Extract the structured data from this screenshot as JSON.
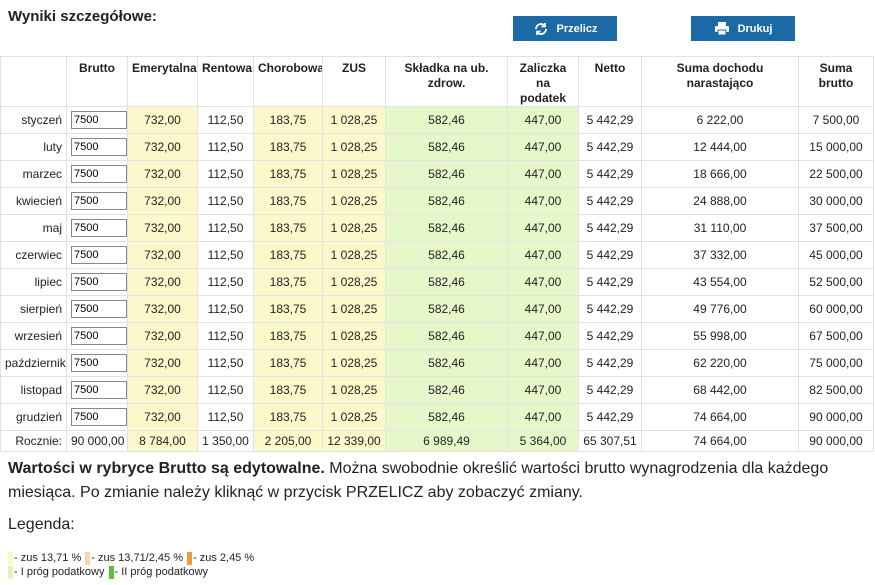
{
  "header": {
    "title": "Wyniki szczegółowe:",
    "buttons": [
      "Przelicz",
      "Drukuj"
    ]
  },
  "table": {
    "columns": [
      "Brutto",
      "Emerytalna",
      "Rentowa",
      "Chorobowa",
      "ZUS",
      "Składka na ub. zdrow.",
      "Zaliczka na podatek",
      "Netto",
      "Suma dochodu narastająco",
      "Suma brutto"
    ],
    "rows": [
      {
        "label": "styczeń",
        "cells": [
          "7500",
          "732,00",
          "112,50",
          "183,75",
          "1 028,25",
          "582,46",
          "447,00",
          "5 442,29",
          "6 222,00",
          "7 500,00"
        ]
      },
      {
        "label": "luty",
        "cells": [
          "7500",
          "732,00",
          "112,50",
          "183,75",
          "1 028,25",
          "582,46",
          "447,00",
          "5 442,29",
          "12 444,00",
          "15 000,00"
        ]
      },
      {
        "label": "marzec",
        "cells": [
          "7500",
          "732,00",
          "112,50",
          "183,75",
          "1 028,25",
          "582,46",
          "447,00",
          "5 442,29",
          "18 666,00",
          "22 500,00"
        ]
      },
      {
        "label": "kwiecień",
        "cells": [
          "7500",
          "732,00",
          "112,50",
          "183,75",
          "1 028,25",
          "582,46",
          "447,00",
          "5 442,29",
          "24 888,00",
          "30 000,00"
        ]
      },
      {
        "label": "maj",
        "cells": [
          "7500",
          "732,00",
          "112,50",
          "183,75",
          "1 028,25",
          "582,46",
          "447,00",
          "5 442,29",
          "31 110,00",
          "37 500,00"
        ]
      },
      {
        "label": "czerwiec",
        "cells": [
          "7500",
          "732,00",
          "112,50",
          "183,75",
          "1 028,25",
          "582,46",
          "447,00",
          "5 442,29",
          "37 332,00",
          "45 000,00"
        ]
      },
      {
        "label": "lipiec",
        "cells": [
          "7500",
          "732,00",
          "112,50",
          "183,75",
          "1 028,25",
          "582,46",
          "447,00",
          "5 442,29",
          "43 554,00",
          "52 500,00"
        ]
      },
      {
        "label": "sierpień",
        "cells": [
          "7500",
          "732,00",
          "112,50",
          "183,75",
          "1 028,25",
          "582,46",
          "447,00",
          "5 442,29",
          "49 776,00",
          "60 000,00"
        ]
      },
      {
        "label": "wrzesień",
        "cells": [
          "7500",
          "732,00",
          "112,50",
          "183,75",
          "1 028,25",
          "582,46",
          "447,00",
          "5 442,29",
          "55 998,00",
          "67 500,00"
        ]
      },
      {
        "label": "październik",
        "cells": [
          "7500",
          "732,00",
          "112,50",
          "183,75",
          "1 028,25",
          "582,46",
          "447,00",
          "5 442,29",
          "62 220,00",
          "75 000,00"
        ]
      },
      {
        "label": "listopad",
        "cells": [
          "7500",
          "732,00",
          "112,50",
          "183,75",
          "1 028,25",
          "582,46",
          "447,00",
          "5 442,29",
          "68 442,00",
          "82 500,00"
        ]
      },
      {
        "label": "grudzień",
        "cells": [
          "7500",
          "732,00",
          "112,50",
          "183,75",
          "1 028,25",
          "582,46",
          "447,00",
          "5 442,29",
          "74 664,00",
          "90 000,00"
        ]
      }
    ],
    "total": {
      "label": "Rocznie:",
      "cells": [
        "90 000,00",
        "8 784,00",
        "1 350,00",
        "2 205,00",
        "12 339,00",
        "6 989,49",
        "5 364,00",
        "65 307,51",
        "74 664,00",
        "90 000,00"
      ]
    }
  },
  "note": {
    "bold": "Wartości w rybryce Brutto są edytowalne.",
    "text": "Można swobodnie określić wartości brutto wynagrodzenia dla każdego miesiąca. Po zmianie należy kliknąć w przycisk PRZELICZ aby zobaczyć zmiany."
  },
  "legend": {
    "title": "Legenda:",
    "items": [
      "- zus 13,71 %",
      "- zus 13,71/2,45 %",
      "- zus 2,45 %",
      "- I próg podatkowy",
      "- II próg podatkowy"
    ]
  }
}
